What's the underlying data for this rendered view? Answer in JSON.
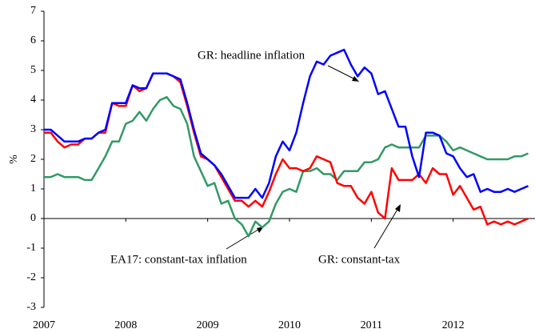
{
  "chart_data": {
    "type": "line",
    "ylabel": "%",
    "xlim": [
      2007,
      2013
    ],
    "xticks": [
      2007,
      2008,
      2009,
      2010,
      2011,
      2012
    ],
    "ylim": [
      -3,
      7
    ],
    "yticks": [
      -3,
      -2,
      -1,
      0,
      1,
      2,
      3,
      4,
      5,
      6,
      7
    ],
    "grid": false,
    "annotations": [
      "GR: headline inflation",
      "EA17: constant-tax inflation",
      "GR: constant-tax"
    ],
    "x": [
      2007,
      2007.083,
      2007.167,
      2007.25,
      2007.333,
      2007.417,
      2007.5,
      2007.583,
      2007.667,
      2007.75,
      2007.833,
      2007.917,
      2008,
      2008.083,
      2008.167,
      2008.25,
      2008.333,
      2008.417,
      2008.5,
      2008.583,
      2008.667,
      2008.75,
      2008.833,
      2008.917,
      2009,
      2009.083,
      2009.167,
      2009.25,
      2009.333,
      2009.417,
      2009.5,
      2009.583,
      2009.667,
      2009.75,
      2009.833,
      2009.917,
      2010,
      2010.083,
      2010.167,
      2010.25,
      2010.333,
      2010.417,
      2010.5,
      2010.583,
      2010.667,
      2010.75,
      2010.833,
      2010.917,
      2011,
      2011.083,
      2011.167,
      2011.25,
      2011.333,
      2011.417,
      2011.5,
      2011.583,
      2011.667,
      2011.75,
      2011.833,
      2011.917,
      2012,
      2012.083,
      2012.167,
      2012.25,
      2012.333,
      2012.417,
      2012.5,
      2012.583,
      2012.667,
      2012.75,
      2012.833,
      2012.917
    ],
    "series": [
      {
        "name": "EA17: constant-tax inflation",
        "color": "#339966",
        "values": [
          1.4,
          1.4,
          1.5,
          1.4,
          1.4,
          1.4,
          1.3,
          1.3,
          1.7,
          2.1,
          2.6,
          2.6,
          3.2,
          3.3,
          3.6,
          3.3,
          3.7,
          4.0,
          4.1,
          3.8,
          3.7,
          3.2,
          2.1,
          1.6,
          1.1,
          1.2,
          0.5,
          0.6,
          0.0,
          -0.2,
          -0.6,
          -0.1,
          -0.3,
          -0.1,
          0.5,
          0.9,
          1.0,
          0.9,
          1.6,
          1.6,
          1.7,
          1.5,
          1.5,
          1.3,
          1.6,
          1.6,
          1.6,
          1.9,
          1.9,
          2.0,
          2.4,
          2.5,
          2.4,
          2.4,
          2.4,
          2.4,
          2.8,
          2.8,
          2.8,
          2.6,
          2.3,
          2.4,
          2.3,
          2.2,
          2.1,
          2.0,
          2.0,
          2.0,
          2.0,
          2.1,
          2.1,
          2.2
        ]
      },
      {
        "name": "GR: constant-tax",
        "color": "#ff0000",
        "values": [
          2.9,
          2.9,
          2.6,
          2.4,
          2.5,
          2.5,
          2.7,
          2.7,
          2.9,
          2.9,
          3.9,
          3.8,
          3.8,
          4.5,
          4.3,
          4.4,
          4.9,
          4.9,
          4.9,
          4.8,
          4.6,
          3.8,
          2.9,
          2.1,
          2.0,
          1.8,
          1.4,
          1.0,
          0.6,
          0.6,
          0.4,
          0.6,
          0.4,
          0.9,
          1.5,
          2.0,
          1.7,
          1.7,
          1.6,
          1.7,
          2.1,
          2.0,
          1.9,
          1.2,
          1.1,
          1.1,
          0.7,
          0.5,
          0.9,
          0.2,
          0.0,
          1.7,
          1.3,
          1.3,
          1.3,
          1.5,
          1.2,
          1.7,
          1.5,
          1.5,
          0.8,
          1.1,
          0.7,
          0.3,
          0.4,
          -0.2,
          -0.1,
          -0.2,
          -0.1,
          -0.2,
          -0.1,
          0.0
        ]
      },
      {
        "name": "GR: headline inflation",
        "color": "#0000ff",
        "values": [
          3.0,
          3.0,
          2.8,
          2.6,
          2.6,
          2.6,
          2.7,
          2.7,
          2.9,
          3.0,
          3.9,
          3.9,
          3.9,
          4.5,
          4.4,
          4.4,
          4.9,
          4.9,
          4.9,
          4.8,
          4.7,
          3.9,
          3.0,
          2.2,
          2.0,
          1.8,
          1.5,
          1.1,
          0.7,
          0.7,
          0.7,
          1.0,
          0.7,
          1.2,
          2.1,
          2.6,
          2.3,
          2.9,
          3.9,
          4.8,
          5.3,
          5.2,
          5.5,
          5.6,
          5.7,
          5.2,
          4.8,
          5.1,
          4.9,
          4.2,
          4.3,
          3.7,
          3.1,
          3.1,
          2.1,
          1.4,
          2.9,
          2.9,
          2.8,
          2.2,
          2.1,
          1.7,
          1.4,
          1.5,
          0.9,
          1.0,
          0.9,
          0.9,
          1.0,
          0.9,
          1.0,
          1.1
        ]
      }
    ]
  }
}
